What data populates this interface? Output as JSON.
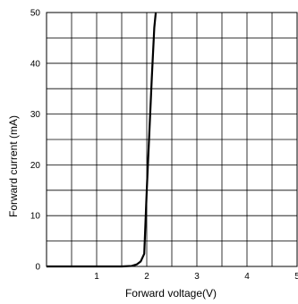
{
  "chart_data": {
    "type": "line",
    "title": "",
    "xlabel": "Forward voltage(V)",
    "ylabel": "Forward current (mA)",
    "xlim": [
      0,
      5
    ],
    "ylim": [
      0,
      50
    ],
    "x_ticks": [
      "1",
      "2",
      "3",
      "4",
      "5"
    ],
    "y_ticks": [
      "0",
      "10",
      "20",
      "30",
      "40",
      "50"
    ],
    "grid": true,
    "series": [
      {
        "color": "#000000",
        "x": [
          0,
          1.0,
          1.5,
          1.7,
          1.8,
          1.88,
          1.95,
          2.0,
          2.05,
          2.1,
          2.15,
          2.18
        ],
        "y": [
          0,
          0,
          0,
          0.1,
          0.4,
          1.0,
          2.5,
          15,
          26,
          37,
          47,
          50
        ]
      }
    ]
  }
}
